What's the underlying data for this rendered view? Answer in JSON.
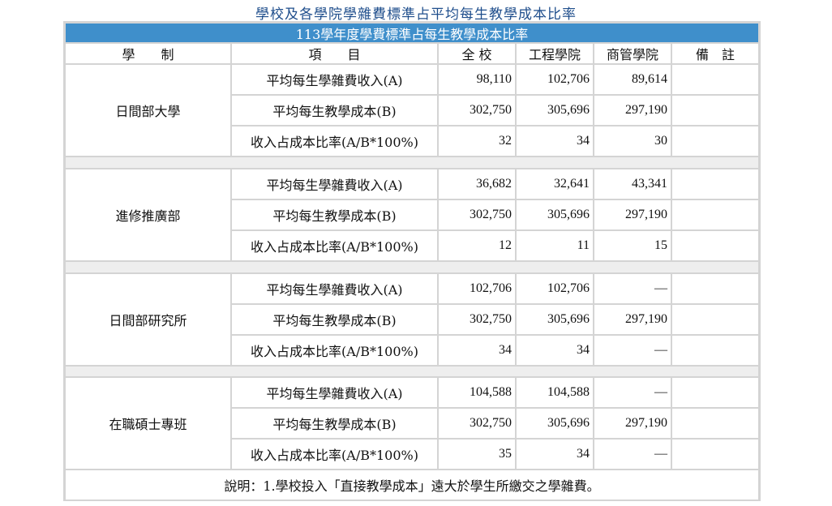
{
  "page_title": "學校及各學院學雜費標準占平均每生教學成本比率",
  "table": {
    "banner": "113學年度學費標準占每生教學成本比率",
    "headers": {
      "system": "學　　制",
      "item": "項　　目",
      "school": "全 校",
      "engineering": "工程學院",
      "management": "商管學院",
      "remarks": "備　註"
    },
    "groups": [
      {
        "name": "日間部大學",
        "rows": [
          {
            "item": "平均每生學雜費收入(A)",
            "school": "98,110",
            "engineering": "102,706",
            "management": "89,614",
            "remarks": ""
          },
          {
            "item": "平均每生教學成本(B)",
            "school": "302,750",
            "engineering": "305,696",
            "management": "297,190",
            "remarks": ""
          },
          {
            "item": "收入占成本比率(A/B*100%)",
            "school": "32",
            "engineering": "34",
            "management": "30",
            "remarks": ""
          }
        ]
      },
      {
        "name": "進修推廣部",
        "rows": [
          {
            "item": "平均每生學雜費收入(A)",
            "school": "36,682",
            "engineering": "32,641",
            "management": "43,341",
            "remarks": ""
          },
          {
            "item": "平均每生教學成本(B)",
            "school": "302,750",
            "engineering": "305,696",
            "management": "297,190",
            "remarks": ""
          },
          {
            "item": "收入占成本比率(A/B*100%)",
            "school": "12",
            "engineering": "11",
            "management": "15",
            "remarks": ""
          }
        ]
      },
      {
        "name": "日間部研究所",
        "rows": [
          {
            "item": "平均每生學雜費收入(A)",
            "school": "102,706",
            "engineering": "102,706",
            "management": "—",
            "remarks": ""
          },
          {
            "item": "平均每生教學成本(B)",
            "school": "302,750",
            "engineering": "305,696",
            "management": "297,190",
            "remarks": ""
          },
          {
            "item": "收入占成本比率(A/B*100%)",
            "school": "34",
            "engineering": "34",
            "management": "—",
            "remarks": ""
          }
        ]
      },
      {
        "name": "在職碩士專班",
        "rows": [
          {
            "item": "平均每生學雜費收入(A)",
            "school": "104,588",
            "engineering": "104,588",
            "management": "—",
            "remarks": ""
          },
          {
            "item": "平均每生教學成本(B)",
            "school": "302,750",
            "engineering": "305,696",
            "management": "297,190",
            "remarks": ""
          },
          {
            "item": "收入占成本比率(A/B*100%)",
            "school": "35",
            "engineering": "34",
            "management": "—",
            "remarks": ""
          }
        ]
      }
    ],
    "note": "說明：1.學校投入「直接教學成本」遠大於學生所繳交之學雜費。"
  }
}
